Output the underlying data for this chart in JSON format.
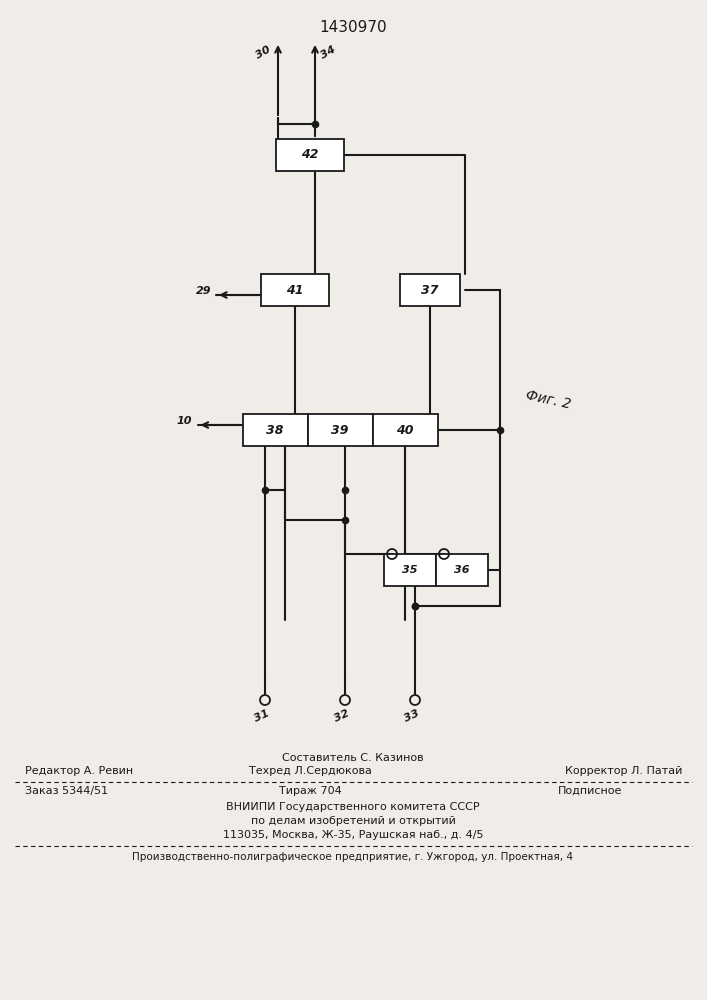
{
  "title": "1430970",
  "fig_label": "Фиг. 2",
  "bg": "#f0ede8",
  "lc": "#1a1a1a",
  "footer_top_center": "Составитель С. Казинов",
  "footer_left": "Редактор А. Ревин",
  "footer_center": "Техред Л.Сердюкова",
  "footer_right": "Корректор Л. Патай",
  "footer_order": "Заказ 5344/51",
  "footer_tirazh": "Тираж 704",
  "footer_podp": "Подписное",
  "footer_vnipi": "ВНИИПИ Государственного комитета СССР",
  "footer_po": "по делам изобретений и открытий",
  "footer_addr": "113035, Москва, Ж-35, Раушская наб., д. 4/5",
  "footer_bottom": "Производственно-полиграфическое предприятие, г. Ужгород, ул. Проектная, 4"
}
